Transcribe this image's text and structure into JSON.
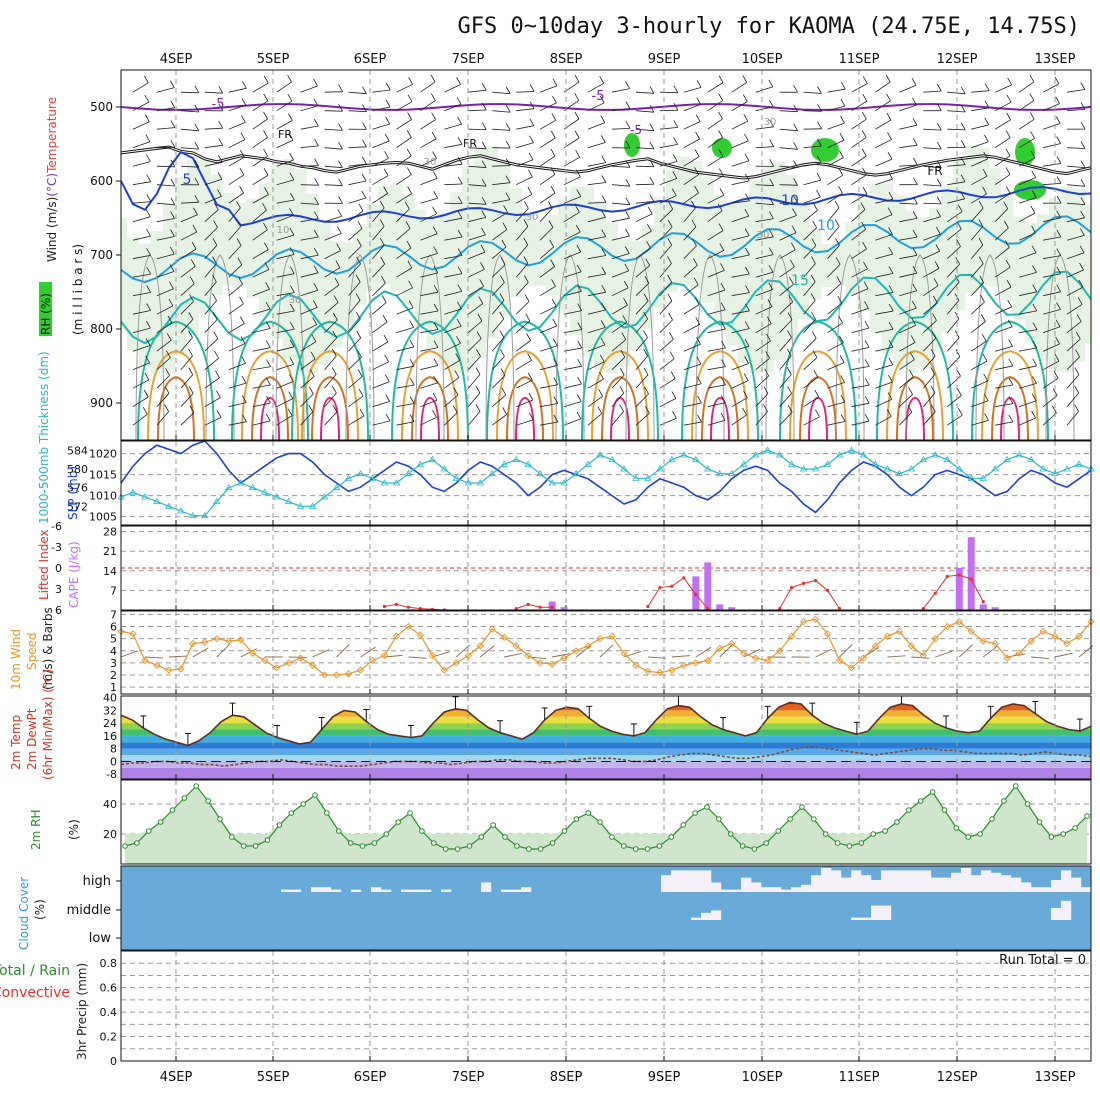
{
  "title": "GFS 0~10day 3-hourly for KAOMA (24.75E, 14.75S)",
  "dates": [
    "4SEP",
    "5SEP",
    "6SEP",
    "7SEP",
    "8SEP",
    "9SEP",
    "10SEP",
    "11SEP",
    "12SEP",
    "13SEP"
  ],
  "colors": {
    "grid": "#9a9a9a",
    "slp": "#1f3fd0",
    "thickness": "#2ab7c7",
    "cape": "#c070f0",
    "lifted": "#e03030",
    "wind10": "#e8952a",
    "rh_fill": "#8fcf8f",
    "rh_line": "#2e8b2e",
    "cloud_bg": "#6aaad8",
    "cloud_fill": "#f3f0f8"
  },
  "chart_data": [
    {
      "id": "upper-air",
      "type": "contour",
      "left_label_parts": [
        {
          "text": "Wind (m/s)",
          "color": "#222222"
        },
        {
          "text": "(°C)",
          "color": "#7040b0"
        },
        {
          "text": "Temperature",
          "color": "#e04040"
        }
      ],
      "rh_label": "RH (%)",
      "ylabel": "(m i l l i b a r s)",
      "yticks": [
        500,
        600,
        700,
        800,
        900
      ],
      "ylim": [
        450,
        950
      ],
      "contour_labels": [
        "-5",
        "-5",
        "FR",
        "FR",
        "FR",
        "-5",
        "5",
        "10",
        "15",
        "10",
        "30",
        "30",
        "30",
        "30",
        "30",
        "10"
      ],
      "freezing_level_mb": [
        562,
        560,
        558,
        556,
        554,
        560,
        562,
        570,
        574,
        570,
        566,
        568,
        570,
        574,
        576,
        580,
        582,
        586,
        588,
        584,
        580,
        578,
        576,
        575,
        576,
        580,
        584,
        578,
        572,
        568,
        566,
        570,
        574,
        578,
        580,
        582,
        584,
        586,
        588,
        586,
        582,
        578,
        575,
        572,
        570,
        576,
        580,
        584,
        588,
        590,
        592,
        594,
        596,
        594,
        590,
        586,
        582,
        578,
        576,
        578,
        582,
        586,
        590,
        592,
        590,
        586,
        582,
        578,
        575,
        572,
        570,
        568,
        566,
        568,
        572,
        576,
        580,
        584,
        588,
        590,
        586,
        582
      ]
    },
    {
      "id": "slp-thickness",
      "type": "line",
      "left_ylabel": "1000-500mb Thickness (dm)",
      "right_ylabel": "SLP (mb)",
      "left_ticks": [
        572,
        576,
        580,
        584
      ],
      "right_ticks": [
        1005,
        1010,
        1015,
        1020
      ],
      "series": [
        {
          "name": "SLP (mb)",
          "unit": "mb",
          "values": [
            1013,
            1017,
            1020,
            1022,
            1021,
            1020,
            1022,
            1023,
            1020,
            1016,
            1013,
            1015,
            1017,
            1019,
            1020,
            1020,
            1018,
            1015,
            1013,
            1011,
            1012,
            1014,
            1016,
            1018,
            1017,
            1015,
            1012,
            1011,
            1013,
            1016,
            1018,
            1017,
            1015,
            1013,
            1010,
            1012,
            1015,
            1016,
            1015,
            1014,
            1012,
            1010,
            1008,
            1009,
            1012,
            1014,
            1013,
            1012,
            1010,
            1009,
            1011,
            1014,
            1016,
            1017,
            1016,
            1013,
            1011,
            1008,
            1006,
            1009,
            1013,
            1016,
            1018,
            1017,
            1015,
            1012,
            1010,
            1012,
            1015,
            1016,
            1015,
            1014,
            1012,
            1010,
            1011,
            1014,
            1016,
            1015,
            1013,
            1012,
            1014,
            1016
          ]
        },
        {
          "name": "1000-500mb Thickness (dm)",
          "unit": "dm",
          "values": [
            574,
            575,
            574,
            573,
            572,
            571,
            570,
            570,
            573,
            576,
            577,
            576,
            575,
            574,
            573,
            572,
            572,
            574,
            576,
            578,
            579,
            578,
            577,
            577,
            579,
            581,
            582,
            580,
            578,
            577,
            577,
            579,
            581,
            582,
            581,
            579,
            577,
            577,
            579,
            581,
            583,
            582,
            580,
            578,
            578,
            580,
            582,
            583,
            582,
            580,
            579,
            579,
            581,
            583,
            584,
            583,
            581,
            580,
            580,
            581,
            583,
            584,
            583,
            581,
            580,
            579,
            580,
            582,
            583,
            582,
            580,
            578,
            578,
            580,
            582,
            583,
            582,
            580,
            579,
            580,
            581,
            580
          ]
        }
      ]
    },
    {
      "id": "cape-li",
      "type": "bar",
      "left_ylabel": "Lifted Index",
      "right_ylabel": "CAPE (J/kg)",
      "li_ticks": [
        "-6",
        "-3",
        "0",
        "3",
        "6"
      ],
      "cape_ticks": [
        "7",
        "14",
        "21",
        "28"
      ],
      "cape_index": [
        36,
        37,
        48,
        49,
        50,
        51,
        70,
        71,
        72,
        73
      ],
      "cape_values": [
        3,
        1,
        12,
        17,
        2,
        1,
        15,
        26,
        2,
        1
      ],
      "li_segments": [
        {
          "start": 22,
          "values": [
            5.5,
            5.2,
            5.6,
            5.8,
            5.9,
            6
          ]
        },
        {
          "start": 33,
          "values": [
            5.8,
            5.2,
            5.6,
            5.6
          ]
        },
        {
          "start": 44,
          "values": [
            5.5,
            2.8,
            2.6,
            1.4,
            3.8,
            5.8
          ]
        },
        {
          "start": 55,
          "values": [
            5.8,
            2.8,
            2.2,
            1.8,
            3.2,
            5.8
          ]
        },
        {
          "start": 67,
          "values": [
            5.8,
            3.6,
            1.2,
            1.0,
            1.6,
            4.8
          ]
        }
      ]
    },
    {
      "id": "wind10",
      "type": "line",
      "ylabel_lines": [
        {
          "text": "10m Wind",
          "color": "#e8952a"
        },
        {
          "text": "Speed",
          "color": "#e8952a"
        },
        {
          "text": "(m/s) & Barbs",
          "color": "#222222"
        }
      ],
      "yticks": [
        "1",
        "2",
        "3",
        "4",
        "5",
        "6",
        "7"
      ],
      "values": [
        5.6,
        5.4,
        3.2,
        2.8,
        2.4,
        2.5,
        4.6,
        4.7,
        5.0,
        4.8,
        4.9,
        3.8,
        3.2,
        2.6,
        3.0,
        3.4,
        2.8,
        2.0,
        2.0,
        2.1,
        2.4,
        3.2,
        3.6,
        5.2,
        6.0,
        5.3,
        3.6,
        2.4,
        3.0,
        3.6,
        4.4,
        5.8,
        5.1,
        4.4,
        3.6,
        3.0,
        2.9,
        3.4,
        4.0,
        4.4,
        5.0,
        5.2,
        3.8,
        2.8,
        2.3,
        2.2,
        2.4,
        2.8,
        3.0,
        3.2,
        4.2,
        4.6,
        3.8,
        3.4,
        3.2,
        4.0,
        5.2,
        6.4,
        6.6,
        5.4,
        3.2,
        2.6,
        3.4,
        4.4,
        5.2,
        5.6,
        4.4,
        3.6,
        5.0,
        6.0,
        6.4,
        5.6,
        4.8,
        4.6,
        3.4,
        3.8,
        4.8,
        5.6,
        5.2,
        4.6,
        5.2,
        6.4
      ]
    },
    {
      "id": "temp-dewpoint",
      "type": "area",
      "ylabel_lines": [
        {
          "text": "2m Temp",
          "color": "#c0392b"
        },
        {
          "text": "2m DewPt",
          "color": "#c0392b"
        },
        {
          "text": "(6hr Min/Max) (°C)",
          "color": "#c0392b"
        }
      ],
      "yticks": [
        "-8",
        "0",
        "8",
        "16",
        "24",
        "32",
        "40"
      ],
      "temp": [
        29,
        26,
        21,
        17,
        14,
        12,
        10,
        13,
        18,
        25,
        29,
        28,
        23,
        18,
        15,
        13,
        11,
        12,
        20,
        28,
        32,
        31,
        25,
        20,
        17,
        16,
        15,
        16,
        24,
        31,
        33,
        32,
        26,
        21,
        18,
        16,
        14,
        18,
        26,
        32,
        34,
        33,
        27,
        22,
        19,
        17,
        16,
        18,
        26,
        33,
        35,
        34,
        28,
        23,
        20,
        18,
        16,
        18,
        27,
        34,
        37,
        36,
        29,
        24,
        21,
        19,
        17,
        19,
        27,
        34,
        36,
        35,
        29,
        24,
        21,
        19,
        18,
        19,
        27,
        34,
        36,
        35,
        30,
        25,
        22,
        20,
        19,
        22
      ],
      "dewpt": [
        -2,
        -1,
        -1,
        0,
        0,
        -1,
        -1,
        -2,
        -2,
        -3,
        -2,
        -1,
        0,
        0,
        1,
        0,
        -1,
        -2,
        -2,
        -3,
        -3,
        -3,
        -2,
        -1,
        0,
        0,
        0,
        -1,
        -1,
        -2,
        -1,
        0,
        0,
        1,
        1,
        0,
        0,
        -1,
        -1,
        0,
        1,
        2,
        2,
        2,
        1,
        0,
        0,
        1,
        3,
        4,
        5,
        5,
        4,
        3,
        2,
        2,
        3,
        4,
        6,
        8,
        9,
        9,
        8,
        7,
        6,
        5,
        4,
        5,
        6,
        7,
        8,
        8,
        7,
        7,
        6,
        5,
        5,
        5,
        5,
        4,
        5,
        6,
        5,
        4,
        4,
        3
      ]
    },
    {
      "id": "rh2m",
      "type": "area",
      "ylabel_lines": [
        {
          "text": "2m RH",
          "color": "#2e8b2e"
        },
        {
          "text": "(%)",
          "color": "#222222"
        }
      ],
      "yticks": [
        "20",
        "40"
      ],
      "values": [
        12,
        14,
        22,
        28,
        36,
        44,
        52,
        42,
        30,
        18,
        12,
        12,
        16,
        26,
        34,
        40,
        46,
        34,
        22,
        14,
        12,
        14,
        20,
        28,
        34,
        22,
        14,
        10,
        10,
        12,
        18,
        26,
        18,
        12,
        10,
        10,
        14,
        22,
        30,
        34,
        28,
        18,
        12,
        10,
        10,
        12,
        18,
        26,
        34,
        38,
        30,
        20,
        12,
        10,
        14,
        22,
        30,
        38,
        30,
        20,
        14,
        12,
        14,
        20,
        22,
        28,
        36,
        42,
        48,
        36,
        24,
        18,
        20,
        30,
        42,
        52,
        40,
        28,
        18,
        20,
        24,
        32
      ]
    },
    {
      "id": "cloud",
      "type": "heatmap",
      "ylabel_lines": [
        {
          "text": "Cloud Cover",
          "color": "#3a9ad0"
        },
        {
          "text": "(%)",
          "color": "#222222"
        }
      ],
      "layers": [
        "high",
        "middle",
        "low"
      ],
      "high": [
        0,
        0,
        0,
        0,
        0,
        0,
        0,
        0,
        0,
        0,
        0,
        0,
        0,
        0,
        0,
        0,
        10,
        10,
        0,
        20,
        20,
        10,
        0,
        10,
        0,
        20,
        10,
        0,
        10,
        10,
        10,
        0,
        10,
        0,
        0,
        0,
        40,
        0,
        10,
        10,
        20,
        0,
        0,
        0,
        0,
        0,
        0,
        0,
        0,
        0,
        0,
        0,
        0,
        0,
        70,
        90,
        90,
        90,
        90,
        40,
        10,
        10,
        60,
        40,
        20,
        20,
        10,
        20,
        30,
        70,
        100,
        90,
        60,
        90,
        70,
        50,
        90,
        90,
        90,
        90,
        90,
        60,
        60,
        80,
        100,
        70,
        90,
        80,
        70,
        60,
        40,
        20,
        20,
        50,
        90,
        60,
        20
      ],
      "middle": [
        0,
        0,
        0,
        0,
        0,
        0,
        0,
        0,
        0,
        0,
        0,
        0,
        0,
        0,
        0,
        0,
        0,
        0,
        0,
        0,
        0,
        0,
        0,
        0,
        0,
        0,
        0,
        0,
        0,
        0,
        0,
        0,
        0,
        0,
        0,
        0,
        0,
        0,
        0,
        0,
        0,
        0,
        0,
        0,
        0,
        0,
        0,
        0,
        0,
        0,
        0,
        0,
        0,
        0,
        0,
        0,
        0,
        10,
        30,
        40,
        0,
        0,
        0,
        0,
        0,
        0,
        0,
        0,
        0,
        0,
        0,
        0,
        0,
        10,
        10,
        60,
        60,
        0,
        0,
        0,
        0,
        0,
        0,
        0,
        0,
        0,
        0,
        0,
        0,
        0,
        0,
        0,
        0,
        50,
        80,
        0
      ]
    },
    {
      "id": "precip",
      "type": "bar",
      "ylabel_lines": [
        {
          "text": "3hr Precip (mm)",
          "color": "#222222"
        },
        {
          "text": "Total / Rain",
          "color": "#2e8b2e"
        },
        {
          "text": "Convective",
          "color": "#e03030"
        }
      ],
      "yticks": [
        "0",
        "0.2",
        "0.4",
        "0.6",
        "0.8"
      ],
      "ylim": [
        0,
        0.9
      ],
      "run_total_label": "Run Total = 0",
      "values": []
    }
  ]
}
